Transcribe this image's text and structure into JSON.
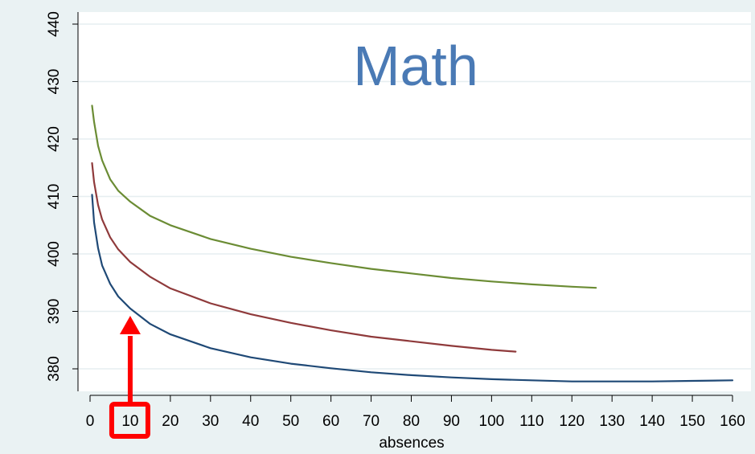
{
  "chart_data": {
    "type": "line",
    "title": "Math",
    "xlabel": "absences",
    "ylabel": "",
    "xlim": [
      0,
      160
    ],
    "ylim": [
      375,
      440
    ],
    "xticks": [
      0,
      10,
      20,
      30,
      40,
      50,
      60,
      70,
      80,
      90,
      100,
      110,
      120,
      130,
      140,
      150,
      160
    ],
    "yticks": [
      380,
      390,
      400,
      410,
      420,
      430,
      440
    ],
    "grid": true,
    "legend": "none",
    "highlighted_tick": 10,
    "series": [
      {
        "color": "#6b8c34",
        "x": [
          0.5,
          1,
          2,
          3,
          5,
          7,
          10,
          15,
          20,
          30,
          40,
          50,
          60,
          70,
          80,
          90,
          100,
          110,
          120,
          126
        ],
        "y": [
          425.8,
          423.0,
          418.8,
          416.3,
          413.0,
          411.0,
          409.1,
          406.6,
          405.0,
          402.6,
          400.9,
          399.5,
          398.4,
          397.4,
          396.6,
          395.8,
          395.2,
          394.7,
          394.3,
          394.1
        ]
      },
      {
        "color": "#8f3a3b",
        "x": [
          0.5,
          1,
          2,
          3,
          5,
          7,
          10,
          15,
          20,
          30,
          40,
          50,
          60,
          70,
          80,
          90,
          100,
          106
        ],
        "y": [
          415.8,
          412.5,
          408.5,
          406.0,
          402.9,
          400.8,
          398.6,
          396.0,
          394.0,
          391.4,
          389.5,
          388.0,
          386.7,
          385.6,
          384.8,
          384.0,
          383.3,
          383.0
        ]
      },
      {
        "color": "#1f4976",
        "x": [
          0.5,
          1,
          2,
          3,
          5,
          7,
          10,
          15,
          20,
          30,
          40,
          50,
          60,
          70,
          80,
          90,
          100,
          110,
          120,
          130,
          140,
          150,
          160
        ],
        "y": [
          410.3,
          405.5,
          401.0,
          398.0,
          394.8,
          392.6,
          390.5,
          387.8,
          386.0,
          383.6,
          382.0,
          380.9,
          380.1,
          379.4,
          378.9,
          378.5,
          378.2,
          378.0,
          377.8,
          377.8,
          377.8,
          377.9,
          378.0
        ]
      }
    ],
    "annotation_color": "#ff0000"
  }
}
